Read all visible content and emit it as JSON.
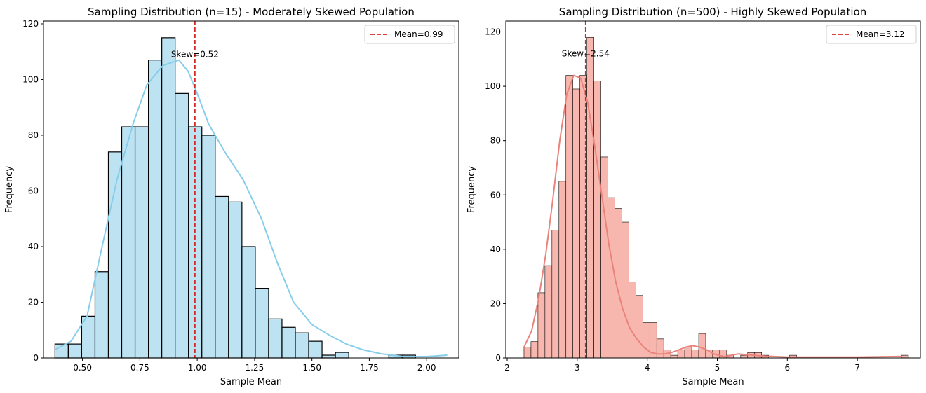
{
  "chart_data": [
    {
      "type": "bar",
      "title": "Sampling Distribution (n=15) - Moderately Skewed Population",
      "xlabel": "Sample Mean",
      "ylabel": "Frequency",
      "xlim": [
        0.33,
        2.14
      ],
      "ylim": [
        0,
        121
      ],
      "xticks": [
        0.5,
        0.75,
        1.0,
        1.25,
        1.5,
        1.75,
        2.0
      ],
      "xtick_labels": [
        "0.50",
        "0.75",
        "1.00",
        "1.25",
        "1.50",
        "1.75",
        "2.00"
      ],
      "yticks": [
        0,
        20,
        40,
        60,
        80,
        100,
        120
      ],
      "ytick_labels": [
        "0",
        "20",
        "40",
        "60",
        "80",
        "100",
        "120"
      ],
      "bin_start": 0.38,
      "bin_width": 0.0582,
      "values": [
        5,
        5,
        15,
        31,
        74,
        83,
        83,
        107,
        115,
        95,
        83,
        80,
        58,
        56,
        40,
        25,
        14,
        11,
        9,
        6,
        1,
        2,
        0,
        0,
        0,
        1,
        1
      ],
      "kde_x": [
        0.38,
        0.45,
        0.52,
        0.58,
        0.65,
        0.72,
        0.78,
        0.85,
        0.92,
        0.96,
        1.0,
        1.05,
        1.12,
        1.2,
        1.28,
        1.35,
        1.42,
        1.5,
        1.58,
        1.65,
        1.72,
        1.8,
        1.9,
        2.0,
        2.09
      ],
      "kde_y": [
        3,
        6,
        15,
        38,
        64,
        84,
        98,
        105,
        107,
        103,
        95,
        84,
        74,
        64,
        50,
        34,
        20,
        12,
        8,
        5,
        3,
        1.5,
        0.5,
        0.5,
        1
      ],
      "mean_line": 0.99,
      "legend_label": "Mean=0.99",
      "legend_position": "top-right",
      "annotation": "Skew=0.52",
      "annotation_xy": [
        0.99,
        107
      ],
      "bar_color": "#bde3f2",
      "kde_color": "#87ceeb",
      "mean_color": "#d62728",
      "grid": false
    },
    {
      "type": "bar",
      "title": "Sampling Distribution (n=500) - Highly Skewed Population",
      "xlabel": "Sample Mean",
      "ylabel": "Frequency",
      "xlim": [
        1.98,
        7.9
      ],
      "ylim": [
        0,
        124
      ],
      "xticks": [
        2,
        3,
        4,
        5,
        6,
        7
      ],
      "xtick_labels": [
        "2",
        "3",
        "4",
        "5",
        "6",
        "7"
      ],
      "yticks": [
        0,
        20,
        40,
        60,
        80,
        100,
        120
      ],
      "ytick_labels": [
        "0",
        "20",
        "40",
        "60",
        "80",
        "100",
        "120"
      ],
      "bin_start": 2.24,
      "bin_width": 0.0998,
      "values": [
        4,
        6,
        24,
        34,
        47,
        65,
        104,
        99,
        104,
        118,
        102,
        74,
        59,
        55,
        50,
        28,
        23,
        13,
        13,
        7,
        3,
        1,
        3,
        4,
        3,
        9,
        3,
        3,
        3,
        1,
        0,
        1,
        2,
        2,
        1,
        0,
        0,
        0,
        1,
        0,
        0,
        0,
        0,
        0,
        0,
        0,
        0,
        0,
        0,
        0,
        0,
        0,
        0,
        0,
        1
      ],
      "kde_x": [
        2.24,
        2.35,
        2.45,
        2.55,
        2.65,
        2.75,
        2.85,
        2.95,
        3.05,
        3.15,
        3.25,
        3.35,
        3.45,
        3.55,
        3.65,
        3.75,
        3.85,
        3.95,
        4.05,
        4.15,
        4.25,
        4.35,
        4.45,
        4.55,
        4.65,
        4.75,
        4.85,
        4.95,
        5.1,
        5.3,
        5.6,
        6.0,
        6.5,
        7.0,
        7.64
      ],
      "kde_y": [
        4,
        10,
        22,
        38,
        58,
        80,
        97,
        104,
        103,
        94,
        78,
        60,
        42,
        28,
        18,
        11,
        7,
        4,
        2,
        1.5,
        1.5,
        2,
        3,
        4,
        4.5,
        4,
        3,
        1.5,
        0.5,
        1.5,
        0.8,
        0.3,
        0.3,
        0.3,
        0.6
      ],
      "mean_line": 3.12,
      "legend_label": "Mean=3.12",
      "legend_position": "top-right",
      "annotation": "Skew=2.54",
      "annotation_xy": [
        3.12,
        110
      ],
      "bar_color": "#f8b7ae",
      "kde_color": "#e9837b",
      "mean_color": "#d62728",
      "grid": false
    }
  ]
}
